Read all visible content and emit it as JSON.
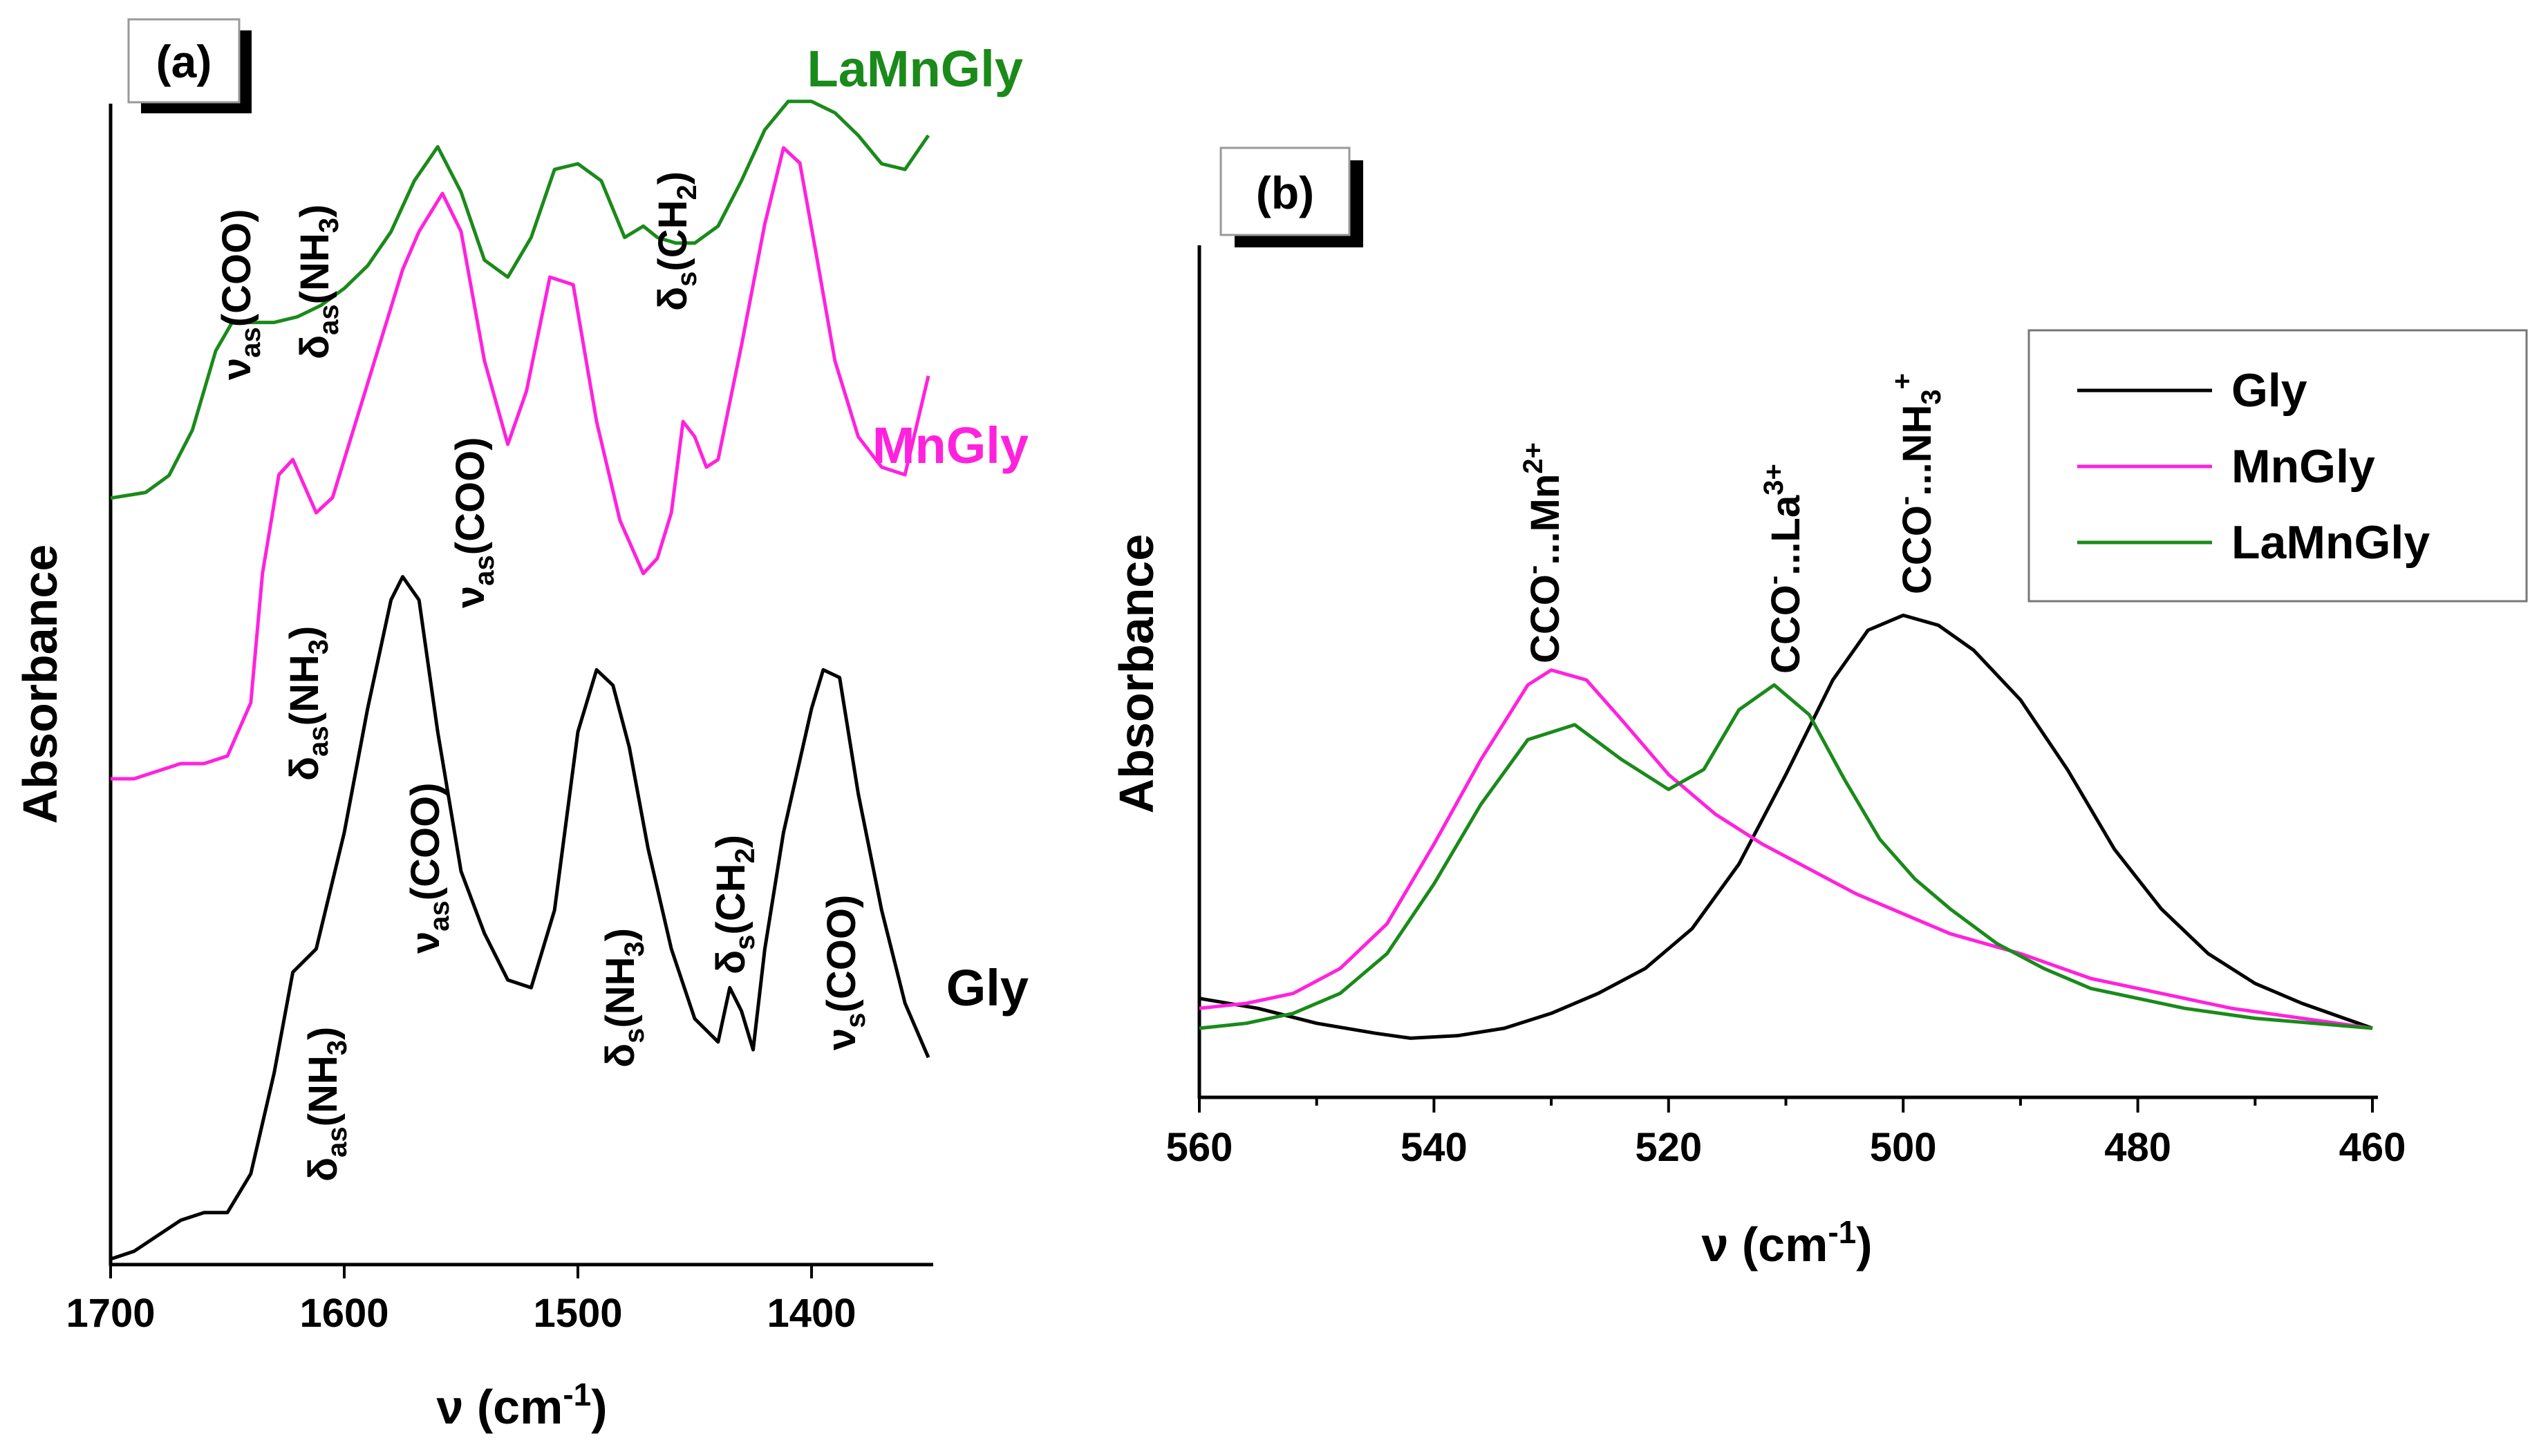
{
  "chart_data": [
    {
      "panel": "(a)",
      "type": "line",
      "xlabel": "ν (cm-1)",
      "ylabel": "Absorbance",
      "xlim": [
        1700,
        1350
      ],
      "x_ticks": [
        "1700",
        "1600",
        "1500",
        "1400"
      ],
      "series": [
        {
          "name": "LaMnGly",
          "color": "#1a8a1a",
          "x": [
            1700,
            1685,
            1675,
            1665,
            1655,
            1648,
            1640,
            1630,
            1620,
            1610,
            1600,
            1590,
            1580,
            1570,
            1560,
            1550,
            1540,
            1530,
            1520,
            1510,
            1500,
            1490,
            1480,
            1472,
            1466,
            1458,
            1450,
            1440,
            1430,
            1420,
            1410,
            1400,
            1390,
            1380,
            1370,
            1360,
            1350
          ],
          "y": [
            0.56,
            0.57,
            0.6,
            0.68,
            0.82,
            0.87,
            0.87,
            0.87,
            0.88,
            0.9,
            0.93,
            0.97,
            1.03,
            1.12,
            1.18,
            1.1,
            0.98,
            0.95,
            1.02,
            1.14,
            1.15,
            1.12,
            1.02,
            1.04,
            1.02,
            1.01,
            1.01,
            1.04,
            1.12,
            1.21,
            1.26,
            1.26,
            1.24,
            1.2,
            1.15,
            1.14,
            1.2
          ]
        },
        {
          "name": "MnGly",
          "color": "#ff22dd",
          "x": [
            1700,
            1690,
            1680,
            1670,
            1660,
            1650,
            1640,
            1635,
            1628,
            1622,
            1612,
            1605,
            1595,
            1585,
            1575,
            1568,
            1558,
            1550,
            1540,
            1530,
            1522,
            1512,
            1502,
            1492,
            1482,
            1472,
            1466,
            1460,
            1455,
            1450,
            1445,
            1440,
            1430,
            1420,
            1412,
            1405,
            1398,
            1390,
            1380,
            1370,
            1360,
            1350
          ],
          "y": [
            0.33,
            0.33,
            0.34,
            0.35,
            0.35,
            0.36,
            0.43,
            0.6,
            0.73,
            0.75,
            0.68,
            0.7,
            0.8,
            0.9,
            1.0,
            1.05,
            1.1,
            1.05,
            0.88,
            0.77,
            0.84,
            0.99,
            0.98,
            0.8,
            0.67,
            0.6,
            0.62,
            0.68,
            0.8,
            0.78,
            0.74,
            0.75,
            0.9,
            1.06,
            1.16,
            1.14,
            1.02,
            0.88,
            0.78,
            0.74,
            0.73,
            0.86
          ]
        },
        {
          "name": "Gly",
          "color": "#000000",
          "x": [
            1700,
            1690,
            1680,
            1670,
            1660,
            1650,
            1640,
            1630,
            1622,
            1612,
            1600,
            1590,
            1580,
            1575,
            1568,
            1560,
            1550,
            1540,
            1530,
            1520,
            1510,
            1500,
            1492,
            1485,
            1478,
            1470,
            1460,
            1450,
            1440,
            1435,
            1430,
            1425,
            1420,
            1412,
            1400,
            1395,
            1388,
            1380,
            1370,
            1360,
            1350
          ],
          "y": [
            0.0,
            0.01,
            0.03,
            0.05,
            0.06,
            0.06,
            0.11,
            0.24,
            0.37,
            0.4,
            0.55,
            0.71,
            0.85,
            0.88,
            0.85,
            0.68,
            0.5,
            0.42,
            0.36,
            0.35,
            0.45,
            0.68,
            0.76,
            0.74,
            0.66,
            0.53,
            0.4,
            0.31,
            0.28,
            0.35,
            0.32,
            0.27,
            0.4,
            0.55,
            0.71,
            0.76,
            0.75,
            0.6,
            0.45,
            0.33,
            0.26
          ]
        }
      ],
      "annotations": [
        "νas(COO)",
        "δas(NH3)",
        "δs(CH2)",
        "νas(COO)",
        "δas(NH3)",
        "νas(COO)",
        "δas(NH3)",
        "δs(NH3)",
        "δs(CH2)",
        "νs(COO)"
      ],
      "curve_labels": [
        "LaMnGly",
        "MnGly",
        "Gly"
      ]
    },
    {
      "panel": "(b)",
      "type": "line",
      "xlabel": "ν (cm-1)",
      "ylabel": "Absorbance",
      "xlim": [
        560,
        460
      ],
      "x_ticks": [
        "560",
        "540",
        "520",
        "500",
        "480",
        "460"
      ],
      "legend": "top-right",
      "series": [
        {
          "name": "Gly",
          "color": "#000000",
          "x": [
            560,
            555,
            550,
            545,
            542,
            538,
            534,
            530,
            526,
            522,
            518,
            514,
            510,
            506,
            503,
            500,
            497,
            494,
            490,
            486,
            482,
            478,
            474,
            470,
            466,
            460
          ],
          "y": [
            0.06,
            0.04,
            0.01,
            -0.01,
            -0.02,
            -0.015,
            0.0,
            0.03,
            0.07,
            0.12,
            0.2,
            0.33,
            0.51,
            0.7,
            0.8,
            0.83,
            0.81,
            0.76,
            0.66,
            0.52,
            0.36,
            0.24,
            0.15,
            0.09,
            0.05,
            0.0
          ]
        },
        {
          "name": "MnGly",
          "color": "#ff22dd",
          "x": [
            560,
            556,
            552,
            548,
            544,
            540,
            536,
            532,
            530,
            527,
            524,
            520,
            516,
            512,
            508,
            504,
            500,
            496,
            490,
            484,
            478,
            472,
            466,
            460
          ],
          "y": [
            0.04,
            0.05,
            0.07,
            0.12,
            0.21,
            0.37,
            0.54,
            0.69,
            0.72,
            0.7,
            0.62,
            0.51,
            0.43,
            0.37,
            0.32,
            0.27,
            0.23,
            0.19,
            0.15,
            0.1,
            0.07,
            0.04,
            0.02,
            0.0
          ]
        },
        {
          "name": "LaMnGly",
          "color": "#1a8a1a",
          "x": [
            560,
            556,
            552,
            548,
            544,
            540,
            536,
            532,
            528,
            524,
            520,
            517,
            514,
            511,
            508,
            505,
            502,
            499,
            496,
            492,
            488,
            484,
            480,
            476,
            470,
            465,
            460
          ],
          "y": [
            0.0,
            0.01,
            0.03,
            0.07,
            0.15,
            0.29,
            0.45,
            0.58,
            0.61,
            0.54,
            0.48,
            0.52,
            0.64,
            0.69,
            0.63,
            0.5,
            0.38,
            0.3,
            0.24,
            0.17,
            0.12,
            0.08,
            0.06,
            0.04,
            0.02,
            0.01,
            0.0
          ]
        }
      ],
      "annotations": [
        "CCO-...Mn2+",
        "CCO-...La3+",
        "CCO-...NH3+"
      ]
    }
  ]
}
